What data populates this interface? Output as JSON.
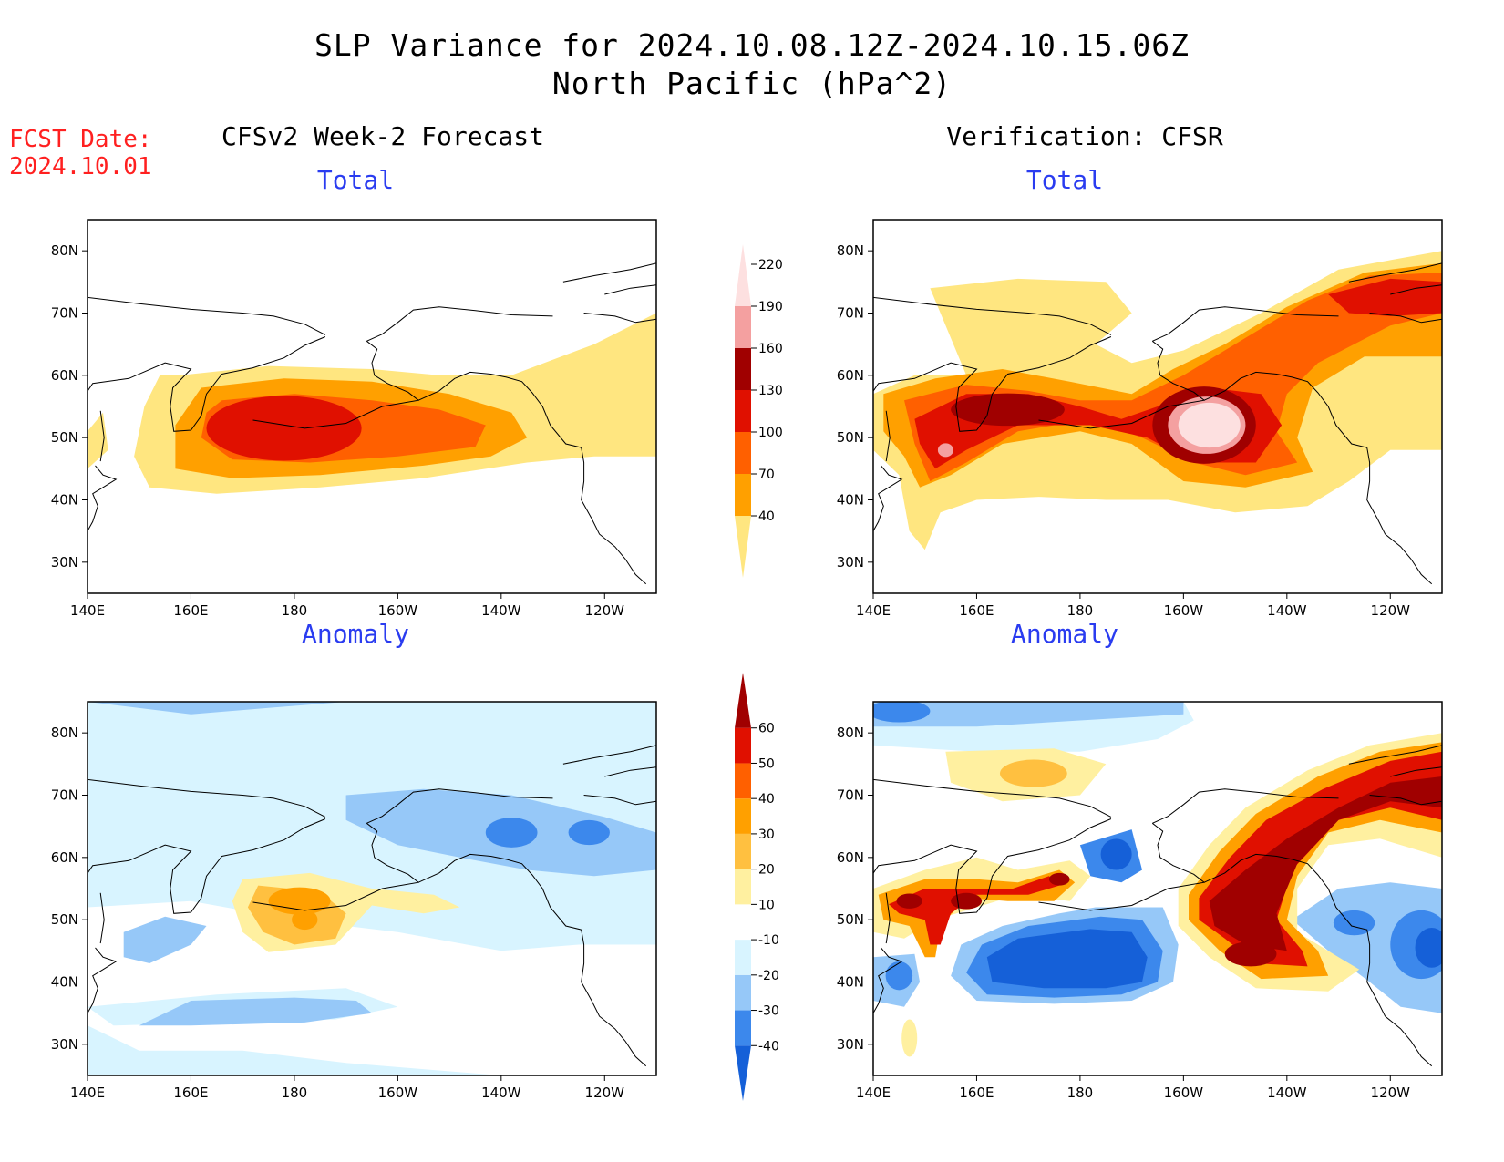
{
  "title": {
    "line1": "SLP Variance for 2024.10.08.12Z-2024.10.15.06Z",
    "line2": "North Pacific (hPa^2)"
  },
  "fcst": {
    "label": "FCST Date:",
    "date": "2024.10.01"
  },
  "columns": {
    "left": "CFSv2 Week-2 Forecast",
    "right": "Verification: CFSR"
  },
  "panels": {
    "top_left": "Total",
    "top_right": "Total",
    "bottom_left": "Anomaly",
    "bottom_right": "Anomaly"
  },
  "axes": {
    "lon_labels": [
      "140E",
      "160E",
      "180",
      "160W",
      "140W",
      "120W"
    ],
    "lat_labels": [
      "80N",
      "70N",
      "60N",
      "50N",
      "40N",
      "30N"
    ],
    "lon_range": [
      140,
      250
    ],
    "lat_range": [
      25,
      85
    ]
  },
  "colorbars": {
    "total": {
      "levels": [
        "40",
        "70",
        "100",
        "130",
        "160",
        "190",
        "220"
      ],
      "colors": [
        "#ffe680",
        "#ffa000",
        "#ff6000",
        "#e01000",
        "#a00000",
        "#f4a0a0",
        "#fde0e0"
      ]
    },
    "anomaly": {
      "levels": [
        "-40",
        "-30",
        "-20",
        "-10",
        "10",
        "20",
        "30",
        "40",
        "50",
        "60"
      ],
      "colors": [
        "#1560d8",
        "#3c88ec",
        "#96c8f8",
        "#d8f4ff",
        "#ffffff",
        "#fff0a0",
        "#ffc040",
        "#ffa000",
        "#ff6000",
        "#e01000",
        "#a00000"
      ]
    }
  },
  "fields": {
    "total_colors": [
      "#ffe680",
      "#ffa000",
      "#ff6000",
      "#e01000",
      "#a00000",
      "#f4a0a0",
      "#fde0e0"
    ],
    "anom_colors": {
      "dark_blue": "#1560d8",
      "mid_blue": "#3c88ec",
      "light_blue": "#96c8f8",
      "pale_blue": "#d8f4ff",
      "pale_yellow": "#fff0a0",
      "light_orange": "#ffc040",
      "orange": "#ffa000",
      "dark_orange": "#ff6000",
      "red": "#e01000",
      "dark_red": "#a00000"
    }
  }
}
